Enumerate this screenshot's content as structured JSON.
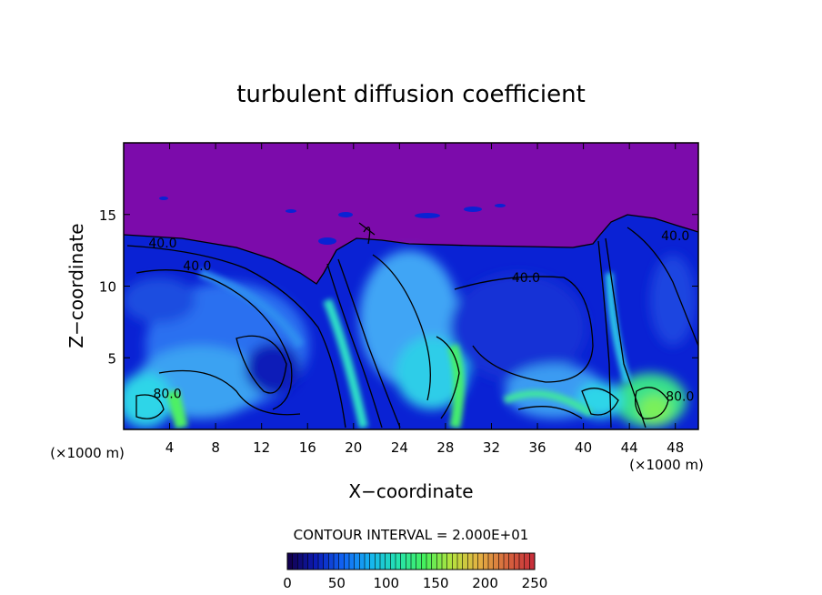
{
  "chart_data": {
    "type": "heatmap",
    "title": "turbulent diffusion coefficient",
    "xlabel": "X−coordinate",
    "ylabel": "Z−coordinate",
    "x_unit_left": "(×1000 m)",
    "x_unit_right": "(×1000 m)",
    "xlim": [
      0,
      50
    ],
    "ylim": [
      0,
      20
    ],
    "x_ticks": [
      4,
      8,
      12,
      16,
      20,
      24,
      28,
      32,
      36,
      40,
      44,
      48
    ],
    "y_ticks": [
      5,
      10,
      15
    ],
    "contour_interval_text": "CONTOUR INTERVAL = 2.000E+01",
    "contour_labels": [
      {
        "text": "40.0",
        "x": 3.4,
        "z": 12.7
      },
      {
        "text": "40.0",
        "x": 6.4,
        "z": 11.1
      },
      {
        "text": "40.0",
        "x": 35.0,
        "z": 10.3
      },
      {
        "text": "40.0",
        "x": 48.0,
        "z": 13.2
      },
      {
        "text": "80.0",
        "x": 3.8,
        "z": 2.2
      },
      {
        "text": "80.0",
        "x": 48.4,
        "z": 2.0
      }
    ],
    "colorbar": {
      "min": 0,
      "max": 250,
      "ticks": [
        0,
        50,
        100,
        150,
        200,
        250
      ],
      "colors": [
        "#120050",
        "#0b1db8",
        "#1266f5",
        "#16b4f0",
        "#24e3b0",
        "#46f05c",
        "#b6e23e",
        "#e4b242",
        "#d86a3e",
        "#c8303a"
      ]
    },
    "field_colors": {
      "background_top": "#7c0bab",
      "deep_blue": "#0a1ed2",
      "mid_blue": "#1a5df0",
      "light_blue": "#3ea0f5",
      "cyan": "#2fd5e8",
      "green": "#43f067",
      "yellowgreen": "#8ef040"
    }
  }
}
